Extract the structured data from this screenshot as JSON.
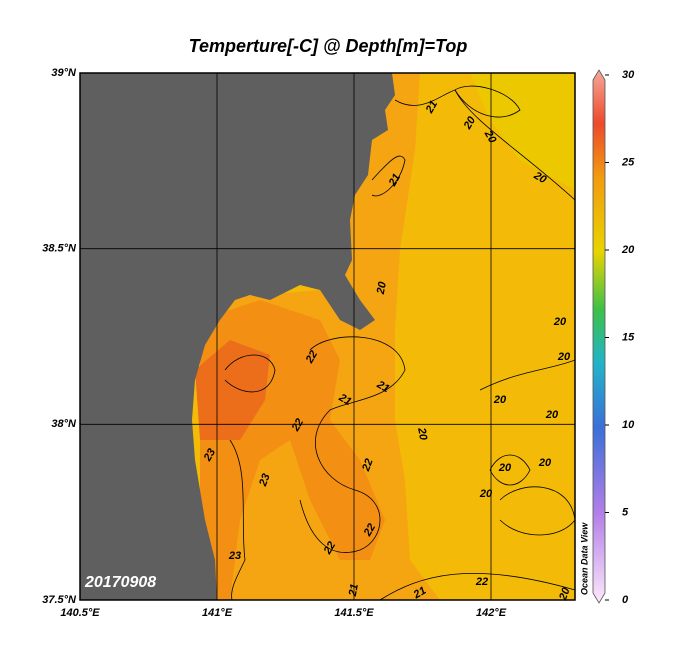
{
  "title": "Temperture[-C] @ Depth[m]=Top",
  "date_label": "20170908",
  "credit": "Ocean Data View",
  "longitude_ticks": [
    {
      "value": 140.5,
      "label": "140.5°E"
    },
    {
      "value": 141,
      "label": "141°E"
    },
    {
      "value": 141.5,
      "label": "141.5°E"
    },
    {
      "value": 142,
      "label": "142°E"
    }
  ],
  "latitude_ticks": [
    {
      "value": 37.5,
      "label": "37.5°N"
    },
    {
      "value": 38,
      "label": "38°N"
    },
    {
      "value": 38.5,
      "label": "38.5°N"
    },
    {
      "value": 39,
      "label": "39°N"
    }
  ],
  "colorbar": {
    "min": 0,
    "max": 30,
    "ticks": [
      0,
      5,
      10,
      15,
      20,
      25,
      30
    ]
  },
  "contour_labels": [
    "21",
    "20",
    "20",
    "20",
    "21",
    "20",
    "20",
    "20",
    "22",
    "21",
    "21",
    "20",
    "20",
    "20",
    "20",
    "20",
    "20",
    "22",
    "22",
    "23",
    "23",
    "23",
    "22",
    "22",
    "21",
    "21",
    "22",
    "20"
  ]
}
